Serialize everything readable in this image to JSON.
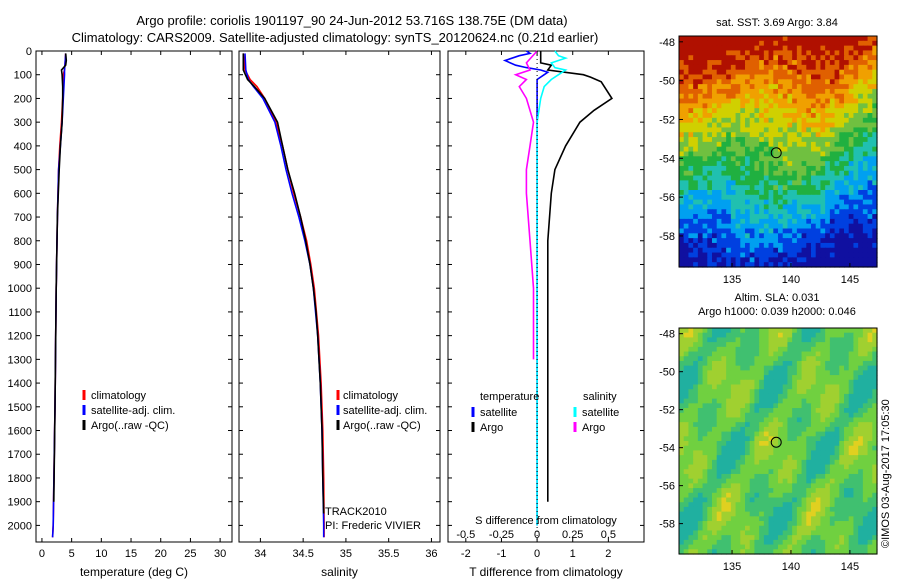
{
  "header": {
    "line1": "Argo profile: coriolis 1901197_90 24-Jun-2012 53.716S 138.75E (DM data)",
    "line2": "Climatology: CARS2009. Satellite-adjusted climatology: synTS_20120624.nc (0.21d earlier)"
  },
  "depth_ticks": [
    0,
    100,
    200,
    300,
    400,
    500,
    600,
    700,
    800,
    900,
    1000,
    1100,
    1200,
    1300,
    1400,
    1500,
    1600,
    1700,
    1800,
    1900,
    2000
  ],
  "chart_data": [
    {
      "type": "line",
      "id": "temperature",
      "xlabel": "temperature (deg C)",
      "xlim": [
        -1,
        32
      ],
      "ylim": [
        2070,
        0
      ],
      "xticks": [
        0,
        5,
        10,
        15,
        20,
        25,
        30
      ],
      "legend": [
        "climatology",
        "satellite-adj. clim.",
        "Argo(..raw -QC)"
      ],
      "legend_placement": "lower-middle",
      "series": [
        {
          "name": "climatology",
          "color": "#ff0000",
          "y": [
            10,
            50,
            80,
            100,
            150,
            200,
            300,
            400,
            500,
            700,
            1000,
            1500,
            2000,
            2050
          ],
          "x": [
            4.0,
            3.9,
            3.8,
            3.6,
            3.6,
            3.5,
            3.3,
            3.0,
            2.8,
            2.6,
            2.4,
            2.2,
            1.9,
            1.8
          ]
        },
        {
          "name": "satellite-adj. clim.",
          "color": "#0000ff",
          "y": [
            10,
            50,
            80,
            100,
            150,
            200,
            300,
            400,
            500,
            700,
            1000,
            1500,
            2000,
            2050
          ],
          "x": [
            4.0,
            3.9,
            3.8,
            3.8,
            3.7,
            3.6,
            3.4,
            3.1,
            2.8,
            2.6,
            2.4,
            2.2,
            1.9,
            1.8
          ]
        },
        {
          "name": "Argo(..raw -QC)",
          "color": "#000000",
          "y": [
            10,
            40,
            60,
            80,
            100,
            150,
            200,
            300,
            400,
            500,
            700,
            1000,
            1500,
            1900
          ],
          "x": [
            4.0,
            4.1,
            4.0,
            3.3,
            3.4,
            3.5,
            3.5,
            3.4,
            3.1,
            2.9,
            2.6,
            2.4,
            2.2,
            2.0
          ]
        }
      ]
    },
    {
      "type": "line",
      "id": "salinity",
      "xlabel": "salinity",
      "xlim": [
        33.75,
        36.1
      ],
      "ylim": [
        2070,
        0
      ],
      "xticks": [
        34,
        34.5,
        35,
        35.5,
        36
      ],
      "legend": [
        "climatology",
        "satellite-adj. clim.",
        "Argo(..raw -QC)"
      ],
      "legend_placement": "lower-middle",
      "annotation": [
        "TRACK2010",
        "PI: Frederic VIVIER"
      ],
      "series": [
        {
          "name": "climatology",
          "color": "#ff0000",
          "y": [
            10,
            80,
            120,
            150,
            200,
            300,
            400,
            500,
            600,
            700,
            800,
            900,
            1000,
            1200,
            1400,
            1600,
            1800,
            2000,
            2050
          ],
          "x": [
            33.8,
            33.82,
            33.88,
            33.96,
            34.05,
            34.18,
            34.26,
            34.32,
            34.39,
            34.47,
            34.54,
            34.59,
            34.63,
            34.68,
            34.71,
            34.73,
            34.74,
            34.745,
            34.745
          ]
        },
        {
          "name": "satellite-adj. clim.",
          "color": "#0000ff",
          "y": [
            10,
            80,
            120,
            150,
            200,
            300,
            400,
            500,
            600,
            700,
            800,
            900,
            1000,
            1200,
            1400,
            1600,
            1800,
            2000,
            2050
          ],
          "x": [
            33.82,
            33.83,
            33.86,
            33.92,
            34.03,
            34.17,
            34.24,
            34.3,
            34.37,
            34.45,
            34.52,
            34.58,
            34.62,
            34.67,
            34.7,
            34.72,
            34.73,
            34.74,
            34.74
          ]
        },
        {
          "name": "Argo(..raw -QC)",
          "color": "#000000",
          "y": [
            10,
            80,
            120,
            150,
            200,
            300,
            400,
            500,
            600,
            700,
            800,
            900,
            1000,
            1100,
            1200,
            1400,
            1600,
            1800,
            1950
          ],
          "x": [
            33.8,
            33.8,
            33.85,
            33.93,
            34.05,
            34.2,
            34.26,
            34.32,
            34.4,
            34.47,
            34.53,
            34.58,
            34.62,
            34.65,
            34.67,
            34.7,
            34.72,
            34.73,
            34.74
          ]
        }
      ]
    },
    {
      "type": "line",
      "id": "difference",
      "xlabel": "T difference from climatology",
      "x2label": "S difference from climatology",
      "xlim": [
        -2.5,
        3.0
      ],
      "ylim": [
        2070,
        0
      ],
      "xticks": [
        -2,
        -1,
        0,
        1,
        2
      ],
      "x2ticks": [
        "-0.5",
        "-0.25",
        "0",
        "0.25",
        "0.5"
      ],
      "x2ticks_values": [
        -2,
        -1,
        0,
        1,
        2
      ],
      "legend": {
        "left_title": "temperature",
        "right_title": "salinity",
        "left": [
          "satellite",
          "Argo"
        ],
        "right": [
          "satellite",
          "Argo"
        ]
      },
      "series": [
        {
          "name": "temperature satellite",
          "color": "#0000ff",
          "y": [
            0,
            10,
            20,
            40,
            60,
            70,
            80,
            90,
            100,
            120,
            150,
            200,
            300,
            500,
            1000,
            1500,
            2000
          ],
          "x": [
            -0.3,
            -0.2,
            -0.5,
            -0.9,
            -0.6,
            -0.3,
            0.1,
            0.3,
            0.2,
            0.0,
            0.0,
            0.0,
            0.0,
            0.0,
            0.0,
            0.0,
            0.0
          ]
        },
        {
          "name": "temperature Argo",
          "color": "#000000",
          "y": [
            0,
            50,
            60,
            80,
            100,
            110,
            130,
            200,
            250,
            300,
            400,
            500,
            600,
            800,
            1000,
            1500,
            1900
          ],
          "x": [
            0.1,
            0.1,
            0.4,
            0.3,
            1.3,
            1.5,
            1.8,
            2.1,
            1.6,
            1.2,
            0.8,
            0.5,
            0.4,
            0.3,
            0.3,
            0.3,
            0.3
          ]
        },
        {
          "name": "salinity satellite",
          "color": "#00ffff",
          "y": [
            0,
            20,
            30,
            50,
            70,
            80,
            100,
            120,
            150,
            200,
            300,
            500,
            1000,
            1500,
            2000
          ],
          "x": [
            0.5,
            0.6,
            0.8,
            0.4,
            0.5,
            0.8,
            0.6,
            0.4,
            0.2,
            0.1,
            0.0,
            0.0,
            0.0,
            0.0,
            0.0
          ]
        },
        {
          "name": "salinity Argo",
          "color": "#ff00ff",
          "y": [
            0,
            50,
            80,
            100,
            120,
            150,
            200,
            300,
            400,
            500,
            600,
            800,
            1000,
            1200,
            1300
          ],
          "x": [
            0.0,
            -0.3,
            -0.2,
            -0.6,
            -0.3,
            -0.5,
            -0.3,
            -0.1,
            -0.2,
            -0.3,
            -0.3,
            -0.2,
            -0.1,
            -0.1,
            -0.1
          ]
        }
      ]
    },
    {
      "type": "heatmap",
      "id": "sst_map",
      "title": "sat. SST: 3.69 Argo: 3.84",
      "xticks": [
        135,
        140,
        145
      ],
      "yticks": [
        -48,
        -50,
        -52,
        -54,
        -56,
        -58
      ],
      "xlim": [
        130.5,
        147.3
      ],
      "ylim": [
        -59.6,
        -47.7
      ],
      "marker": {
        "lon": 138.75,
        "lat": -53.716
      },
      "colors": [
        "#1010a0",
        "#0040e0",
        "#00a0f0",
        "#20c0b0",
        "#20b040",
        "#70c040",
        "#d0d000",
        "#f0a000",
        "#e06000",
        "#b01000"
      ]
    },
    {
      "type": "heatmap",
      "id": "sla_map",
      "title": "Altim. SLA: 0.031",
      "subtitle": "Argo h1000: 0.039 h2000: 0.046",
      "xticks": [
        135,
        140,
        145
      ],
      "yticks": [
        -48,
        -50,
        -52,
        -54,
        -56,
        -58
      ],
      "xlim": [
        130.5,
        147.3
      ],
      "ylim": [
        -59.6,
        -47.7
      ],
      "marker": {
        "lon": 138.75,
        "lat": -53.716
      },
      "colors": [
        "#20b0a0",
        "#40c070",
        "#70d040",
        "#a0d030",
        "#e0d020",
        "#f0a020"
      ]
    }
  ],
  "footer_stamp": "©IMOS 03-Aug-2017 17:05:30"
}
